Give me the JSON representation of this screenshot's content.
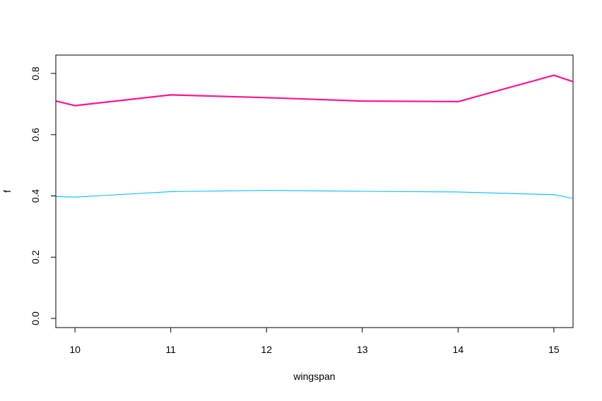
{
  "chart_data": {
    "type": "line",
    "title": "",
    "xlabel": "wingspan",
    "ylabel": "f",
    "xlim": [
      9.8,
      15.2
    ],
    "ylim": [
      -0.03,
      0.86
    ],
    "x_ticks": [
      10,
      11,
      12,
      13,
      14,
      15
    ],
    "y_ticks": [
      0.0,
      0.2,
      0.4,
      0.6,
      0.8
    ],
    "y_tick_labels": [
      "0.0",
      "0.2",
      "0.4",
      "0.6",
      "0.8"
    ],
    "x_tick_labels": [
      "10",
      "11",
      "12",
      "13",
      "14",
      "15"
    ],
    "grid": false,
    "legend": "none",
    "series": [
      {
        "color": "#FF1493",
        "line_style": "thick",
        "x": [
          9.8,
          10.0,
          11.0,
          12.0,
          13.0,
          14.0,
          15.0,
          15.2
        ],
        "y": [
          0.71,
          0.695,
          0.73,
          0.721,
          0.71,
          0.708,
          0.794,
          0.773
        ]
      },
      {
        "color": "#00BFFF",
        "line_style": "thin",
        "x": [
          9.8,
          10.0,
          11.0,
          12.0,
          13.0,
          14.0,
          15.0,
          15.2
        ],
        "y": [
          0.398,
          0.396,
          0.414,
          0.418,
          0.415,
          0.413,
          0.404,
          0.392
        ]
      }
    ]
  }
}
